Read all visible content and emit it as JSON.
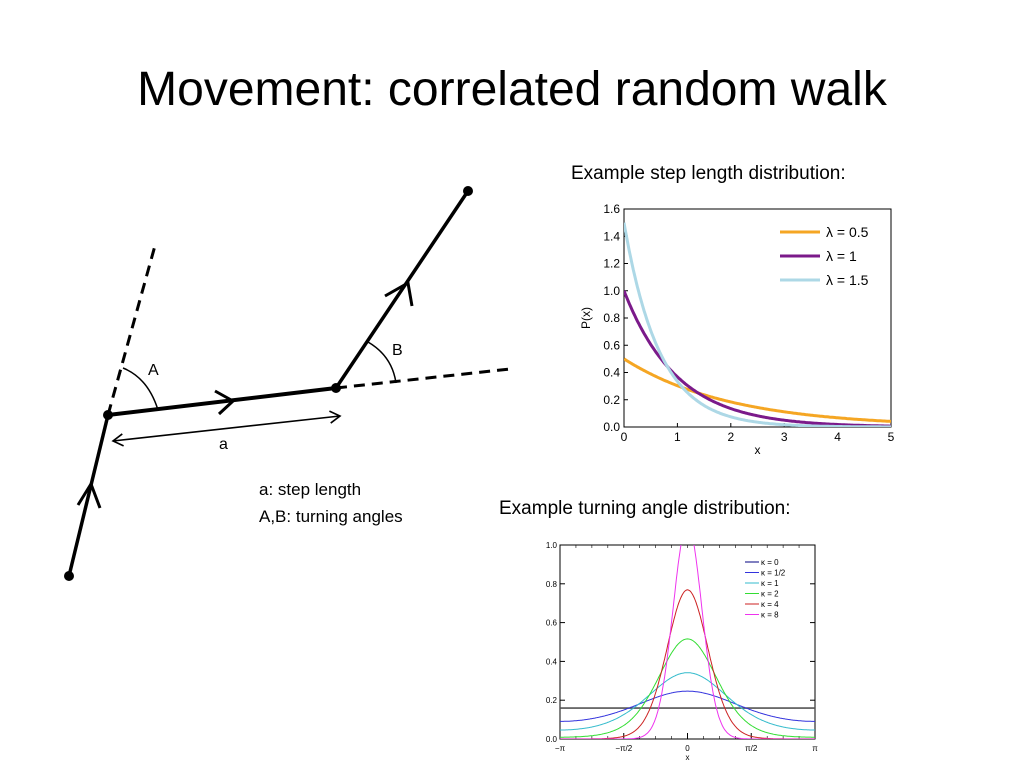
{
  "title": "Movement: correlated random walk",
  "walk_diagram": {
    "angle_a_label": "A",
    "angle_b_label": "B",
    "step_label": "a",
    "legend": [
      "a: step length",
      "A,B: turning angles"
    ]
  },
  "captions": {
    "step_length": "Example step length distribution:",
    "turning_angle": "Example turning angle distribution:"
  },
  "chart_data": [
    {
      "type": "line",
      "title": "",
      "xlabel": "x",
      "ylabel": "P(x)",
      "xlim": [
        0,
        5
      ],
      "ylim": [
        0,
        1.6
      ],
      "x_ticks": [
        "0",
        "1",
        "2",
        "3",
        "4",
        "5"
      ],
      "y_ticks": [
        "0.0",
        "0.2",
        "0.4",
        "0.6",
        "0.8",
        "1.0",
        "1.2",
        "1.4",
        "1.6"
      ],
      "function": "lambda * exp(-lambda * x)",
      "legend_position": "top-right",
      "series": [
        {
          "name": "λ = 0.5",
          "lambda": 0.5,
          "color": "#f5a623",
          "x": [
            0,
            1,
            2,
            3,
            4,
            5
          ],
          "values": [
            0.5,
            0.3,
            0.18,
            0.11,
            0.07,
            0.04
          ]
        },
        {
          "name": "λ = 1",
          "lambda": 1,
          "color": "#7b1a8a",
          "x": [
            0,
            1,
            2,
            3,
            4,
            5
          ],
          "values": [
            1.0,
            0.37,
            0.14,
            0.05,
            0.02,
            0.01
          ]
        },
        {
          "name": "λ = 1.5",
          "lambda": 1.5,
          "color": "#add8e6",
          "x": [
            0,
            1,
            2,
            3,
            4,
            5
          ],
          "values": [
            1.5,
            0.33,
            0.07,
            0.02,
            0.0,
            0.0
          ]
        }
      ]
    },
    {
      "type": "line",
      "title": "",
      "xlabel": "x",
      "ylabel": "",
      "xlim": [
        -3.1416,
        3.1416
      ],
      "ylim": [
        0,
        1.0
      ],
      "x_ticks": [
        "−π",
        "−π/2",
        "0",
        "π/2",
        "π"
      ],
      "y_ticks": [
        "0.0",
        "0.2",
        "0.4",
        "0.6",
        "0.8",
        "1.0"
      ],
      "function": "von Mises: exp(kappa*cos(x)) / (2*pi*I0(kappa))",
      "legend_position": "top-right",
      "series": [
        {
          "name": "κ = 0",
          "kappa": 0,
          "color": "#000080",
          "peak": 0.16
        },
        {
          "name": "κ = 1/2",
          "kappa": 0.5,
          "color": "#3333dd",
          "peak": 0.24
        },
        {
          "name": "κ = 1",
          "kappa": 1,
          "color": "#33bbcc",
          "peak": 0.34
        },
        {
          "name": "κ = 2",
          "kappa": 2,
          "color": "#33dd33",
          "peak": 0.51
        },
        {
          "name": "κ = 4",
          "kappa": 4,
          "color": "#cc2222",
          "peak": 0.77
        },
        {
          "name": "κ = 8",
          "kappa": 8,
          "color": "#ee33ee",
          "peak": 1.1
        }
      ]
    }
  ]
}
